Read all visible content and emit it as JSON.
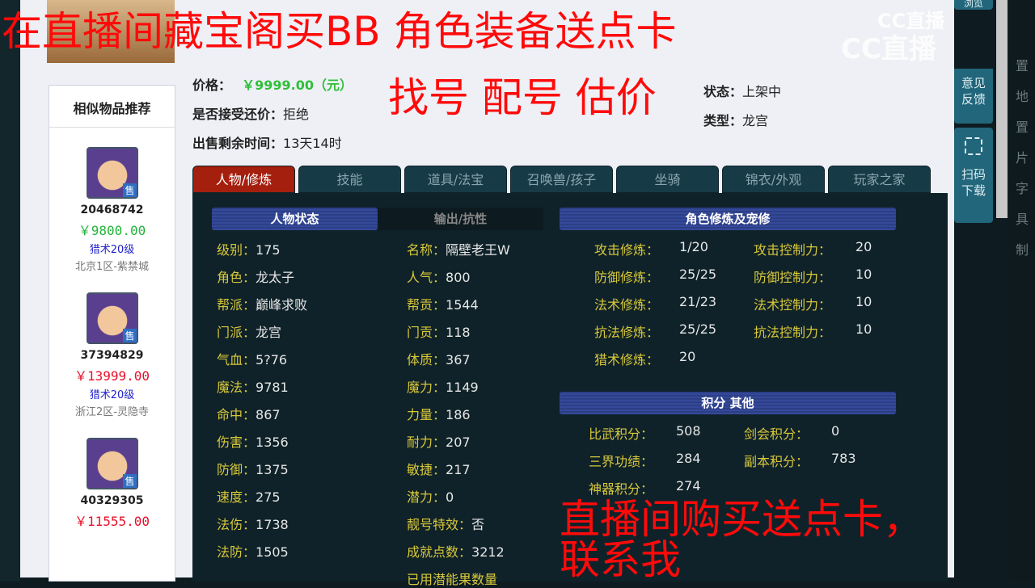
{
  "overlay": {
    "line1": "在直播间藏宝阁买BB 角色装备送点卡",
    "line2": "直播间购买送点卡，联系我",
    "line3": "找号 配号 估价"
  },
  "logo": {
    "small": "CC直播",
    "large": "CC直播"
  },
  "info": {
    "status_label": "状态：",
    "status_value": "上架中",
    "type_label": "类型：",
    "type_value": "龙宫",
    "price_label": "价格：",
    "price_value": "￥9999.00（元）",
    "bargain_label": "是否接受还价：",
    "bargain_value": "拒绝",
    "remaining_label": "出售剩余时间：",
    "remaining_value": "13天14时"
  },
  "tabs": [
    "人物/修炼",
    "技能",
    "道具/法宝",
    "召唤兽/孩子",
    "坐骑",
    "锦衣/外观",
    "玩家之家"
  ],
  "sidebar": {
    "title": "相似物品推荐",
    "items": [
      {
        "id": "20468742",
        "price": "￥9800.00",
        "price_color": "#22b33a",
        "level": "猎术20级",
        "server": "北京1区-紫禁城"
      },
      {
        "id": "37394829",
        "price": "￥13999.00",
        "price_color": "#e8102a",
        "level": "猎术20级",
        "server": "浙江2区-灵隐寺"
      },
      {
        "id": "40329305",
        "price": "￥11555.00",
        "price_color": "#e8102a"
      }
    ]
  },
  "status": {
    "tab_active": "人物状态",
    "tab_other": "输出/抗性",
    "left": [
      [
        "级别：",
        "175"
      ],
      [
        "角色：",
        "龙太子"
      ],
      [
        "帮派：",
        "巅峰求败"
      ],
      [
        "门派：",
        "龙宫"
      ],
      [
        "气血：",
        "5?76"
      ],
      [
        "魔法：",
        "9781"
      ],
      [
        "命中：",
        "867"
      ],
      [
        "伤害：",
        "1356"
      ],
      [
        "防御：",
        "1375"
      ],
      [
        "速度：",
        "275"
      ],
      [
        "法伤：",
        "1738"
      ],
      [
        "法防：",
        "1505"
      ]
    ],
    "right": [
      [
        "名称：",
        "隔壁老王W"
      ],
      [
        "人气：",
        "800"
      ],
      [
        "帮贡：",
        "1544"
      ],
      [
        "门贡：",
        "118"
      ],
      [
        "体质：",
        "367"
      ],
      [
        "魔力：",
        "1149"
      ],
      [
        "力量：",
        "186"
      ],
      [
        "耐力：",
        "207"
      ],
      [
        "敏捷：",
        "217"
      ],
      [
        "潜力：",
        "0"
      ],
      [
        "靓号特效：",
        "否"
      ],
      [
        "成就点数：",
        "3212"
      ],
      [
        "已用潜能果数量",
        ""
      ]
    ]
  },
  "cultivation": {
    "title": "角色修炼及宠修",
    "left": [
      [
        "攻击修炼：",
        "1/20"
      ],
      [
        "防御修炼：",
        "25/25"
      ],
      [
        "法术修炼：",
        "21/23"
      ],
      [
        "抗法修炼：",
        "25/25"
      ],
      [
        "猎术修炼：",
        "20"
      ]
    ],
    "right": [
      [
        "攻击控制力：",
        "20"
      ],
      [
        "防御控制力：",
        "10"
      ],
      [
        "法术控制力：",
        "10"
      ],
      [
        "抗法控制力：",
        "10"
      ]
    ]
  },
  "points": {
    "title": "积分 其他",
    "left": [
      [
        "比武积分：",
        "508"
      ],
      [
        "三界功绩：",
        "284"
      ],
      [
        "神器积分：",
        "274"
      ]
    ],
    "right": [
      [
        "剑会积分：",
        "0"
      ],
      [
        "副本积分：",
        "783"
      ]
    ]
  },
  "cc_panel": {
    "browse": "浏览",
    "feedback": "意见反馈",
    "scan": "扫码下载"
  },
  "right_strip": [
    "置",
    "地",
    "置",
    "片",
    "字",
    "具",
    "制"
  ]
}
